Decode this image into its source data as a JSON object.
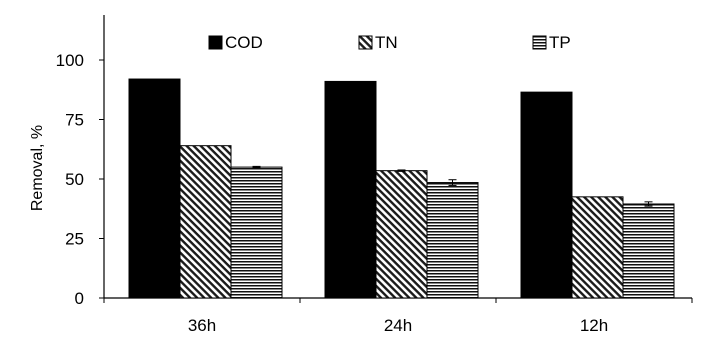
{
  "chart_data": {
    "type": "bar",
    "title": "",
    "xlabel": "",
    "ylabel": "Removal, %",
    "ylim": [
      0,
      100
    ],
    "yticks": [
      0,
      25,
      50,
      75,
      100
    ],
    "categories": [
      "36h",
      "24h",
      "12h"
    ],
    "grid": false,
    "legend_position": "top",
    "series": [
      {
        "name": "COD",
        "values": [
          92,
          91,
          86.5
        ],
        "error": [
          0,
          0,
          0
        ],
        "color": "#000000",
        "pattern": "solid"
      },
      {
        "name": "TN",
        "values": [
          64,
          53.5,
          42.5
        ],
        "error": [
          0,
          0.3,
          0
        ],
        "color": "#000000",
        "pattern": "diagonal-dots"
      },
      {
        "name": "TP",
        "values": [
          55,
          48.5,
          39.5
        ],
        "error": [
          0.3,
          1.2,
          0.9
        ],
        "color": "#000000",
        "pattern": "horizontal-lines"
      }
    ]
  }
}
